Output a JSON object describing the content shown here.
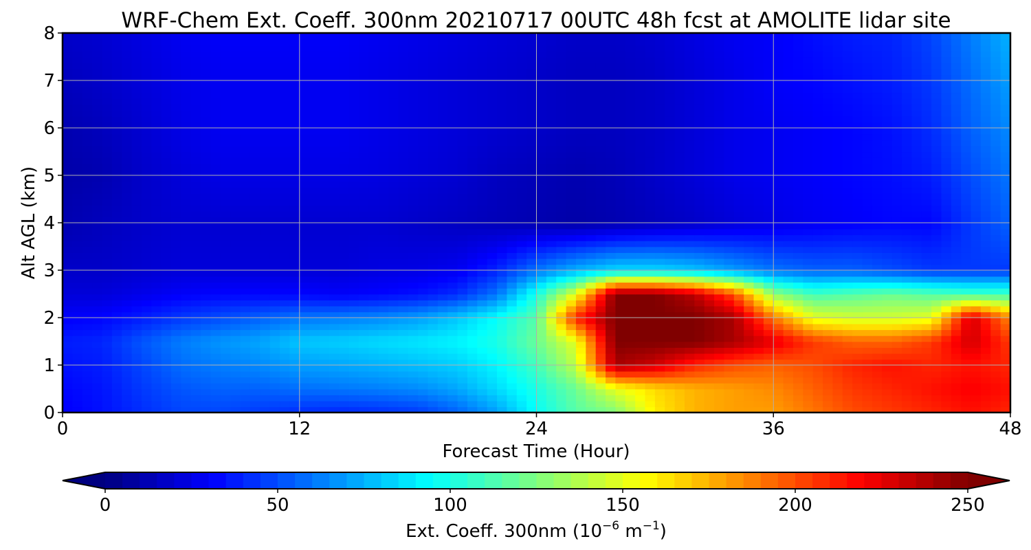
{
  "chart_data": {
    "type": "heatmap",
    "title": "WRF-Chem Ext. Coeff. 300nm  20210717 00UTC 48h fcst at AMOLITE lidar site",
    "xlabel": "Forecast Time (Hour)",
    "ylabel": "Alt AGL (km)",
    "xlim": [
      0,
      48
    ],
    "ylim": [
      0,
      8
    ],
    "xticks": [
      0,
      12,
      24,
      36,
      48
    ],
    "yticks": [
      0,
      1,
      2,
      3,
      4,
      5,
      6,
      7,
      8
    ],
    "grid": true,
    "colormap": "jet",
    "colorbar": {
      "orientation": "horizontal",
      "placement": "bottom",
      "extend": "both",
      "vmin": 0,
      "vmax": 250,
      "ticks": [
        0,
        50,
        100,
        150,
        200,
        250
      ],
      "label_prefix": "Ext. Coeff. 300nm  (10",
      "label_exp1": "−6",
      "label_mid": " m",
      "label_exp2": "−1",
      "label_suffix": ")"
    },
    "x": [
      0,
      2,
      4,
      6,
      8,
      10,
      12,
      14,
      16,
      18,
      20,
      22,
      24,
      26,
      28,
      30,
      32,
      34,
      36,
      38,
      40,
      42,
      44,
      46,
      48
    ],
    "y": [
      0.0,
      0.5,
      1.0,
      1.5,
      2.0,
      2.5,
      3.0,
      4.0,
      5.0,
      6.0,
      7.0,
      8.0
    ],
    "z": [
      [
        30,
        35,
        42,
        48,
        48,
        45,
        42,
        40,
        42,
        45,
        55,
        70,
        95,
        115,
        125,
        160,
        175,
        180,
        180,
        190,
        200,
        205,
        210,
        215,
        210
      ],
      [
        32,
        36,
        45,
        52,
        55,
        55,
        58,
        60,
        62,
        65,
        72,
        85,
        100,
        120,
        150,
        165,
        175,
        180,
        185,
        195,
        205,
        210,
        215,
        220,
        215
      ],
      [
        35,
        38,
        48,
        58,
        62,
        65,
        70,
        72,
        75,
        78,
        82,
        92,
        110,
        140,
        240,
        230,
        210,
        200,
        195,
        200,
        210,
        215,
        210,
        215,
        210
      ],
      [
        38,
        40,
        52,
        62,
        68,
        72,
        80,
        82,
        85,
        88,
        92,
        100,
        120,
        150,
        250,
        250,
        250,
        240,
        225,
        205,
        195,
        195,
        205,
        230,
        205
      ],
      [
        30,
        32,
        38,
        45,
        50,
        55,
        60,
        62,
        65,
        70,
        80,
        95,
        115,
        210,
        250,
        250,
        250,
        240,
        190,
        150,
        145,
        145,
        150,
        230,
        185
      ],
      [
        22,
        22,
        26,
        30,
        32,
        32,
        32,
        30,
        32,
        35,
        42,
        60,
        100,
        150,
        250,
        250,
        235,
        200,
        130,
        110,
        115,
        120,
        115,
        110,
        110
      ],
      [
        18,
        18,
        20,
        22,
        22,
        22,
        22,
        22,
        24,
        25,
        28,
        40,
        60,
        75,
        85,
        85,
        80,
        70,
        60,
        55,
        55,
        50,
        45,
        45,
        45
      ],
      [
        12,
        15,
        18,
        20,
        20,
        20,
        20,
        20,
        20,
        18,
        16,
        14,
        12,
        10,
        12,
        15,
        18,
        22,
        25,
        28,
        30,
        32,
        32,
        45,
        55
      ],
      [
        10,
        12,
        18,
        22,
        25,
        25,
        25,
        25,
        24,
        22,
        20,
        16,
        14,
        12,
        14,
        18,
        22,
        26,
        28,
        30,
        32,
        34,
        38,
        50,
        60
      ],
      [
        12,
        15,
        20,
        25,
        28,
        28,
        28,
        28,
        26,
        24,
        22,
        20,
        18,
        16,
        16,
        18,
        22,
        26,
        28,
        30,
        32,
        35,
        42,
        55,
        65
      ],
      [
        15,
        18,
        22,
        26,
        28,
        28,
        28,
        28,
        26,
        24,
        22,
        20,
        18,
        16,
        16,
        18,
        22,
        26,
        30,
        32,
        35,
        38,
        45,
        58,
        70
      ],
      [
        18,
        20,
        24,
        28,
        30,
        30,
        30,
        30,
        28,
        26,
        24,
        22,
        20,
        18,
        18,
        20,
        24,
        28,
        30,
        34,
        38,
        40,
        48,
        62,
        75
      ]
    ]
  }
}
